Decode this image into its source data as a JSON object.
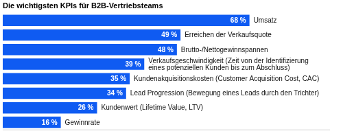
{
  "chart_data": {
    "type": "bar",
    "title": "Die wichtigsten KPIs für B2B-Vertriebsteams",
    "orientation": "horizontal",
    "categories": [
      "Umsatz",
      "Erreichen der Verkaufsquote",
      "Brutto-/Nettogewinnspannen",
      "Verkaufsgeschwindigkeit (Zeit von der Identifizierung\neines potenziellen Kunden bis zum Abschluss)",
      "Kundenakquisitionskosten (Customer Acquisition Cost, CAC)",
      "Lead Progression (Bewegung eines Leads durch den Trichter)",
      "Kundenwert (Lifetime Value, LTV)",
      "Gewinnrate"
    ],
    "values": [
      68,
      49,
      48,
      39,
      35,
      34,
      26,
      16
    ],
    "value_labels": [
      "68 %",
      "49 %",
      "48 %",
      "39 %",
      "35 %",
      "34 %",
      "26 %",
      "16 %"
    ],
    "data_labels": true,
    "color": "#0f5bf2",
    "xlim": [
      0,
      90
    ],
    "tick_labels": false,
    "grid": false
  }
}
